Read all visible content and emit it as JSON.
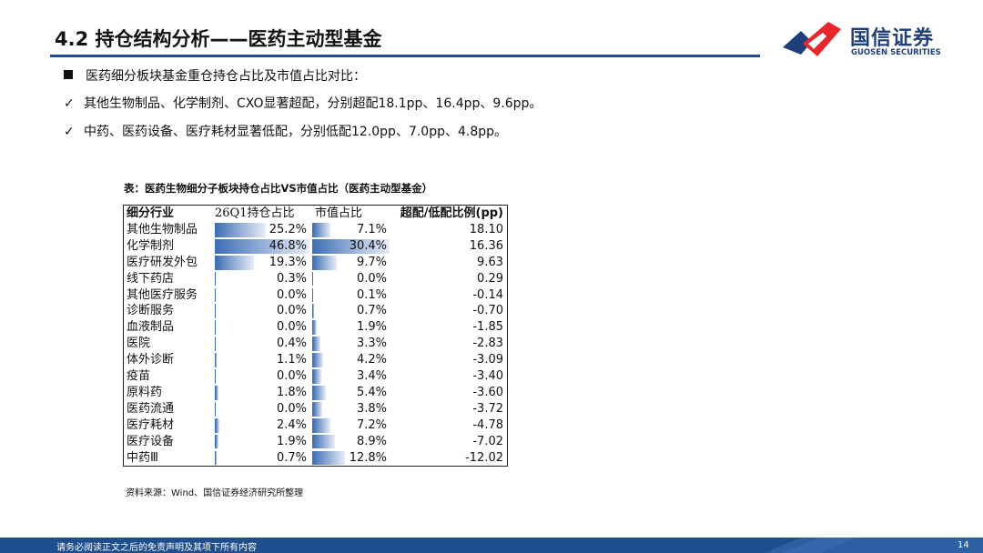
{
  "header": {
    "title": "4.2 持仓结构分析——医药主动型基金",
    "logo_cn": "国信证券",
    "logo_en": "GUOSEN SECURITIES",
    "accent_color": "#1f4e8c",
    "logo_red": "#e8262d"
  },
  "bullets": {
    "main": "医药细分板块基金重仓持仓占比及市值占比对比：",
    "points": [
      "其他生物制品、化学制剂、CXO显著超配，分别超配18.1pp、16.4pp、9.6pp。",
      "中药、医药设备、医疗耗材显著低配，分别低配12.0pp、7.0pp、4.8pp。"
    ]
  },
  "table": {
    "caption": "表：医药生物细分子板块持仓占比VS市值占比（医药主动型基金）",
    "headers": [
      "细分行业",
      "26Q1持仓占比",
      "市值占比",
      "超配/低配比例(pp)"
    ],
    "rows": [
      {
        "name": "其他生物制品",
        "hold": "25.2%",
        "mkt": "7.1%",
        "diff": "18.10",
        "hold_v": 25.2,
        "mkt_v": 7.1
      },
      {
        "name": "化学制剂",
        "hold": "46.8%",
        "mkt": "30.4%",
        "diff": "16.36",
        "hold_v": 46.8,
        "mkt_v": 30.4
      },
      {
        "name": "医疗研发外包",
        "hold": "19.3%",
        "mkt": "9.7%",
        "diff": "9.63",
        "hold_v": 19.3,
        "mkt_v": 9.7
      },
      {
        "name": "线下药店",
        "hold": "0.3%",
        "mkt": "0.0%",
        "diff": "0.29",
        "hold_v": 0.3,
        "mkt_v": 0.0
      },
      {
        "name": "其他医疗服务",
        "hold": "0.0%",
        "mkt": "0.1%",
        "diff": "-0.14",
        "hold_v": 0.0,
        "mkt_v": 0.1
      },
      {
        "name": "诊断服务",
        "hold": "0.0%",
        "mkt": "0.7%",
        "diff": "-0.70",
        "hold_v": 0.0,
        "mkt_v": 0.7
      },
      {
        "name": "血液制品",
        "hold": "0.0%",
        "mkt": "1.9%",
        "diff": "-1.85",
        "hold_v": 0.0,
        "mkt_v": 1.9
      },
      {
        "name": "医院",
        "hold": "0.4%",
        "mkt": "3.3%",
        "diff": "-2.83",
        "hold_v": 0.4,
        "mkt_v": 3.3
      },
      {
        "name": "体外诊断",
        "hold": "1.1%",
        "mkt": "4.2%",
        "diff": "-3.09",
        "hold_v": 1.1,
        "mkt_v": 4.2
      },
      {
        "name": "疫苗",
        "hold": "0.0%",
        "mkt": "3.4%",
        "diff": "-3.40",
        "hold_v": 0.0,
        "mkt_v": 3.4
      },
      {
        "name": "原料药",
        "hold": "1.8%",
        "mkt": "5.4%",
        "diff": "-3.60",
        "hold_v": 1.8,
        "mkt_v": 5.4
      },
      {
        "name": "医药流通",
        "hold": "0.0%",
        "mkt": "3.8%",
        "diff": "-3.72",
        "hold_v": 0.0,
        "mkt_v": 3.8
      },
      {
        "name": "医疗耗材",
        "hold": "2.4%",
        "mkt": "7.2%",
        "diff": "-4.78",
        "hold_v": 2.4,
        "mkt_v": 7.2
      },
      {
        "name": "医疗设备",
        "hold": "1.9%",
        "mkt": "8.9%",
        "diff": "-7.02",
        "hold_v": 1.9,
        "mkt_v": 8.9
      },
      {
        "name": "中药Ⅲ",
        "hold": "0.7%",
        "mkt": "12.8%",
        "diff": "-12.02",
        "hold_v": 0.7,
        "mkt_v": 12.8
      }
    ],
    "bar_color": "#3f6fb4"
  },
  "source": "资料来源：Wind、国信证券经济研究所整理",
  "footer": {
    "disclaimer": "请务必阅读正文之后的免责声明及其项下所有内容",
    "page": "14"
  }
}
